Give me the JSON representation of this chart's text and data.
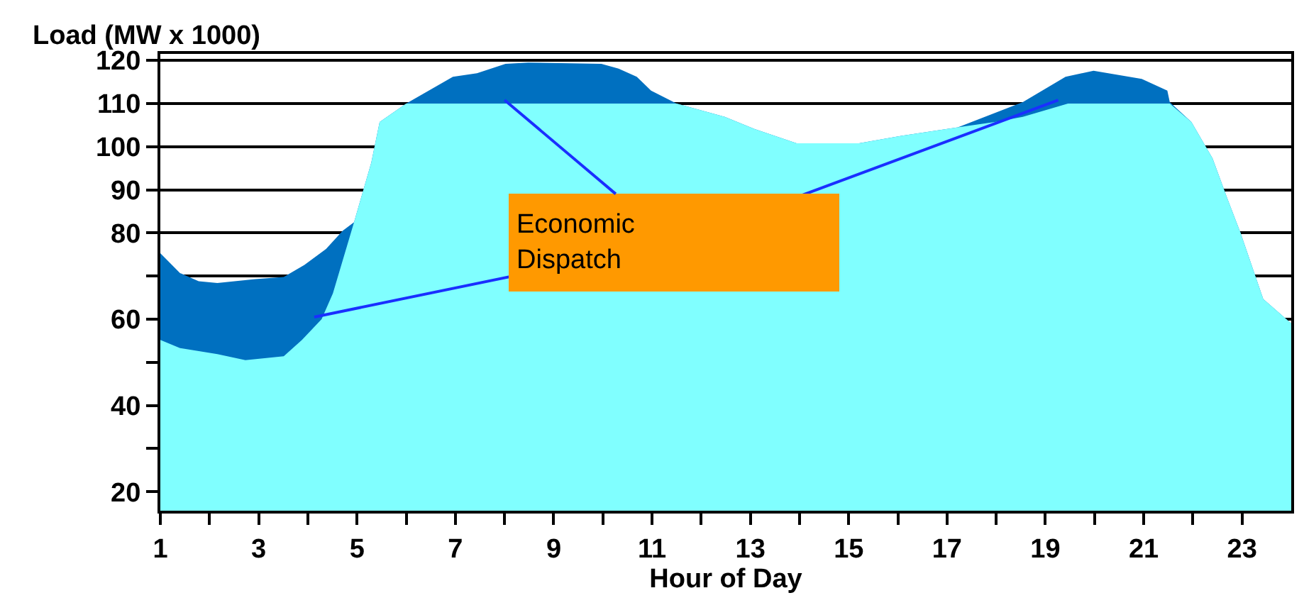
{
  "chart_data": {
    "type": "area",
    "xlabel": "Hour of Day",
    "ylabel": "Load (MW x 1000)",
    "xlim": [
      1,
      24
    ],
    "xticks": [
      1,
      {
        "value": 2,
        "label": null
      },
      3,
      {
        "value": 4,
        "label": null
      },
      5,
      {
        "value": 6,
        "label": null
      },
      7,
      {
        "value": 8,
        "label": null
      },
      9,
      {
        "value": 10,
        "label": null
      },
      11,
      {
        "value": 12,
        "label": null
      },
      13,
      {
        "value": 14,
        "label": null
      },
      15,
      {
        "value": 16,
        "label": null
      },
      17,
      {
        "value": 18,
        "label": null
      },
      19,
      {
        "value": 20,
        "label": null
      },
      21,
      {
        "value": 22,
        "label": null
      },
      23
    ],
    "ylim": [
      15.6,
      121.5
    ],
    "yticks": [
      120,
      110,
      100,
      90,
      80,
      60,
      40,
      20,
      {
        "value": 30,
        "label": null
      },
      {
        "value": 50,
        "label": null
      },
      {
        "value": 70,
        "label": null
      }
    ],
    "grid": "y",
    "series": [
      {
        "color": "#0070c0",
        "x": [
          1.0,
          1.4,
          1.78,
          2.16,
          2.93,
          3.51,
          3.93,
          4.37,
          4.71,
          4.94,
          5.29,
          5.46,
          6.0,
          6.95,
          7.44,
          8.02,
          8.48,
          9.97,
          10.32,
          10.69,
          10.98,
          11.5,
          12.48,
          13.08,
          13.94,
          15.21,
          16.07,
          17.22,
          18.54,
          19.41,
          19.98,
          20.96,
          21.48,
          21.53,
          21.97,
          22.4,
          22.69,
          22.97,
          23.43,
          24.0
        ],
        "values": [
          75.3,
          70.7,
          68.8,
          68.4,
          69.3,
          69.8,
          72.6,
          76.3,
          80.5,
          82.5,
          96.3,
          105.7,
          110.0,
          116.2,
          117.0,
          119.2,
          119.5,
          119.2,
          118.1,
          116.2,
          113.0,
          110.0,
          106.9,
          104.1,
          100.8,
          100.8,
          102.5,
          104.5,
          110.3,
          116.2,
          117.6,
          115.7,
          113.0,
          110.3,
          105.7,
          97.3,
          88.3,
          80.0,
          64.7,
          59.0
        ]
      },
      {
        "color": "#80ffff",
        "x": [
          1.0,
          1.4,
          2.16,
          2.73,
          3.51,
          3.88,
          4.28,
          4.51,
          4.94,
          5.29,
          5.46,
          6.0,
          11.5,
          12.48,
          13.08,
          13.94,
          15.21,
          16.07,
          17.22,
          17.97,
          18.54,
          19.46,
          21.53,
          21.97,
          22.4,
          22.69,
          22.97,
          23.43,
          24.0
        ],
        "values": [
          55.2,
          53.3,
          51.9,
          50.5,
          51.4,
          55.2,
          60.0,
          66.0,
          82.5,
          96.3,
          105.7,
          110.0,
          110.0,
          106.9,
          104.1,
          100.8,
          100.8,
          102.5,
          104.5,
          105.7,
          106.9,
          110.0,
          110.0,
          105.7,
          97.3,
          88.3,
          80.0,
          64.7,
          59.0
        ]
      }
    ],
    "annotations": [
      {
        "text": "Economic\nDispatch",
        "x": 8.0,
        "y": 110.8
      }
    ]
  }
}
